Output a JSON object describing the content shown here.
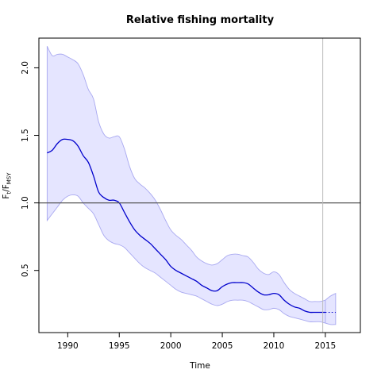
{
  "chart_data": {
    "type": "line",
    "title": "Relative fishing mortality",
    "xlabel": "Time",
    "ylabel": {
      "main": "F",
      "sub1": "t",
      "sep": "/F",
      "sub2": "MSY"
    },
    "xlim": [
      1987.2,
      2018.4
    ],
    "ylim": [
      0.04,
      2.22
    ],
    "x_ticks": [
      1990,
      1995,
      2000,
      2005,
      2010,
      2015
    ],
    "y_ticks": [
      0.5,
      1.0,
      1.5,
      2.0
    ],
    "reference_line_y": 1.0,
    "vertical_line_x": 2014.75,
    "colors": {
      "estimate": "#0000cc",
      "band_fill": "#e5e5ff",
      "band_stroke": "#a8a8f0",
      "reference_line": "#555555",
      "vertical_line": "#bbbbbb"
    },
    "series": [
      {
        "x": [
          1988.0,
          1988.5,
          1989.0,
          1989.5,
          1990.0,
          1990.5,
          1991.0,
          1991.5,
          1992.0,
          1992.5,
          1993.0,
          1993.5,
          1994.0,
          1994.5,
          1995.0,
          1995.5,
          1996.0,
          1996.5,
          1997.0,
          1997.5,
          1998.0,
          1998.5,
          1999.0,
          1999.5,
          2000.0,
          2000.5,
          2001.0,
          2001.5,
          2002.0,
          2002.5,
          2003.0,
          2003.5,
          2004.0,
          2004.5,
          2005.0,
          2005.5,
          2006.0,
          2006.5,
          2007.0,
          2007.5,
          2008.0,
          2008.5,
          2009.0,
          2009.5,
          2010.0,
          2010.5,
          2011.0,
          2011.5,
          2012.0,
          2012.5,
          2013.0,
          2013.5,
          2014.0,
          2014.5,
          2015.0
        ],
        "estimate": [
          1.37,
          1.39,
          1.44,
          1.47,
          1.47,
          1.46,
          1.42,
          1.35,
          1.3,
          1.2,
          1.08,
          1.04,
          1.02,
          1.02,
          1.0,
          0.93,
          0.86,
          0.8,
          0.76,
          0.73,
          0.7,
          0.66,
          0.62,
          0.58,
          0.53,
          0.5,
          0.48,
          0.46,
          0.44,
          0.42,
          0.39,
          0.37,
          0.35,
          0.35,
          0.38,
          0.4,
          0.41,
          0.41,
          0.41,
          0.4,
          0.37,
          0.34,
          0.32,
          0.32,
          0.33,
          0.32,
          0.28,
          0.25,
          0.23,
          0.22,
          0.2,
          0.19,
          0.19,
          0.19,
          0.19
        ],
        "upper": [
          2.16,
          2.09,
          2.1,
          2.1,
          2.08,
          2.06,
          2.03,
          1.95,
          1.84,
          1.77,
          1.6,
          1.51,
          1.48,
          1.49,
          1.49,
          1.4,
          1.27,
          1.18,
          1.14,
          1.11,
          1.07,
          1.02,
          0.95,
          0.87,
          0.8,
          0.76,
          0.73,
          0.69,
          0.65,
          0.6,
          0.57,
          0.55,
          0.54,
          0.55,
          0.58,
          0.61,
          0.62,
          0.62,
          0.61,
          0.6,
          0.56,
          0.51,
          0.48,
          0.47,
          0.49,
          0.47,
          0.41,
          0.36,
          0.33,
          0.31,
          0.29,
          0.27,
          0.27,
          0.27,
          0.28
        ],
        "lower": [
          0.87,
          0.92,
          0.97,
          1.02,
          1.05,
          1.06,
          1.05,
          1.0,
          0.96,
          0.92,
          0.84,
          0.76,
          0.72,
          0.7,
          0.69,
          0.67,
          0.63,
          0.59,
          0.55,
          0.52,
          0.5,
          0.48,
          0.45,
          0.42,
          0.39,
          0.36,
          0.34,
          0.33,
          0.32,
          0.31,
          0.29,
          0.27,
          0.25,
          0.24,
          0.25,
          0.27,
          0.28,
          0.28,
          0.28,
          0.27,
          0.25,
          0.23,
          0.21,
          0.21,
          0.22,
          0.21,
          0.18,
          0.16,
          0.15,
          0.14,
          0.13,
          0.12,
          0.12,
          0.12,
          0.11
        ]
      },
      {
        "x": [
          2015.0,
          2015.5,
          2016.0
        ],
        "estimate": [
          0.19,
          0.19,
          0.19
        ],
        "upper": [
          0.28,
          0.31,
          0.33
        ],
        "lower": [
          0.11,
          0.1,
          0.1
        ]
      }
    ]
  }
}
